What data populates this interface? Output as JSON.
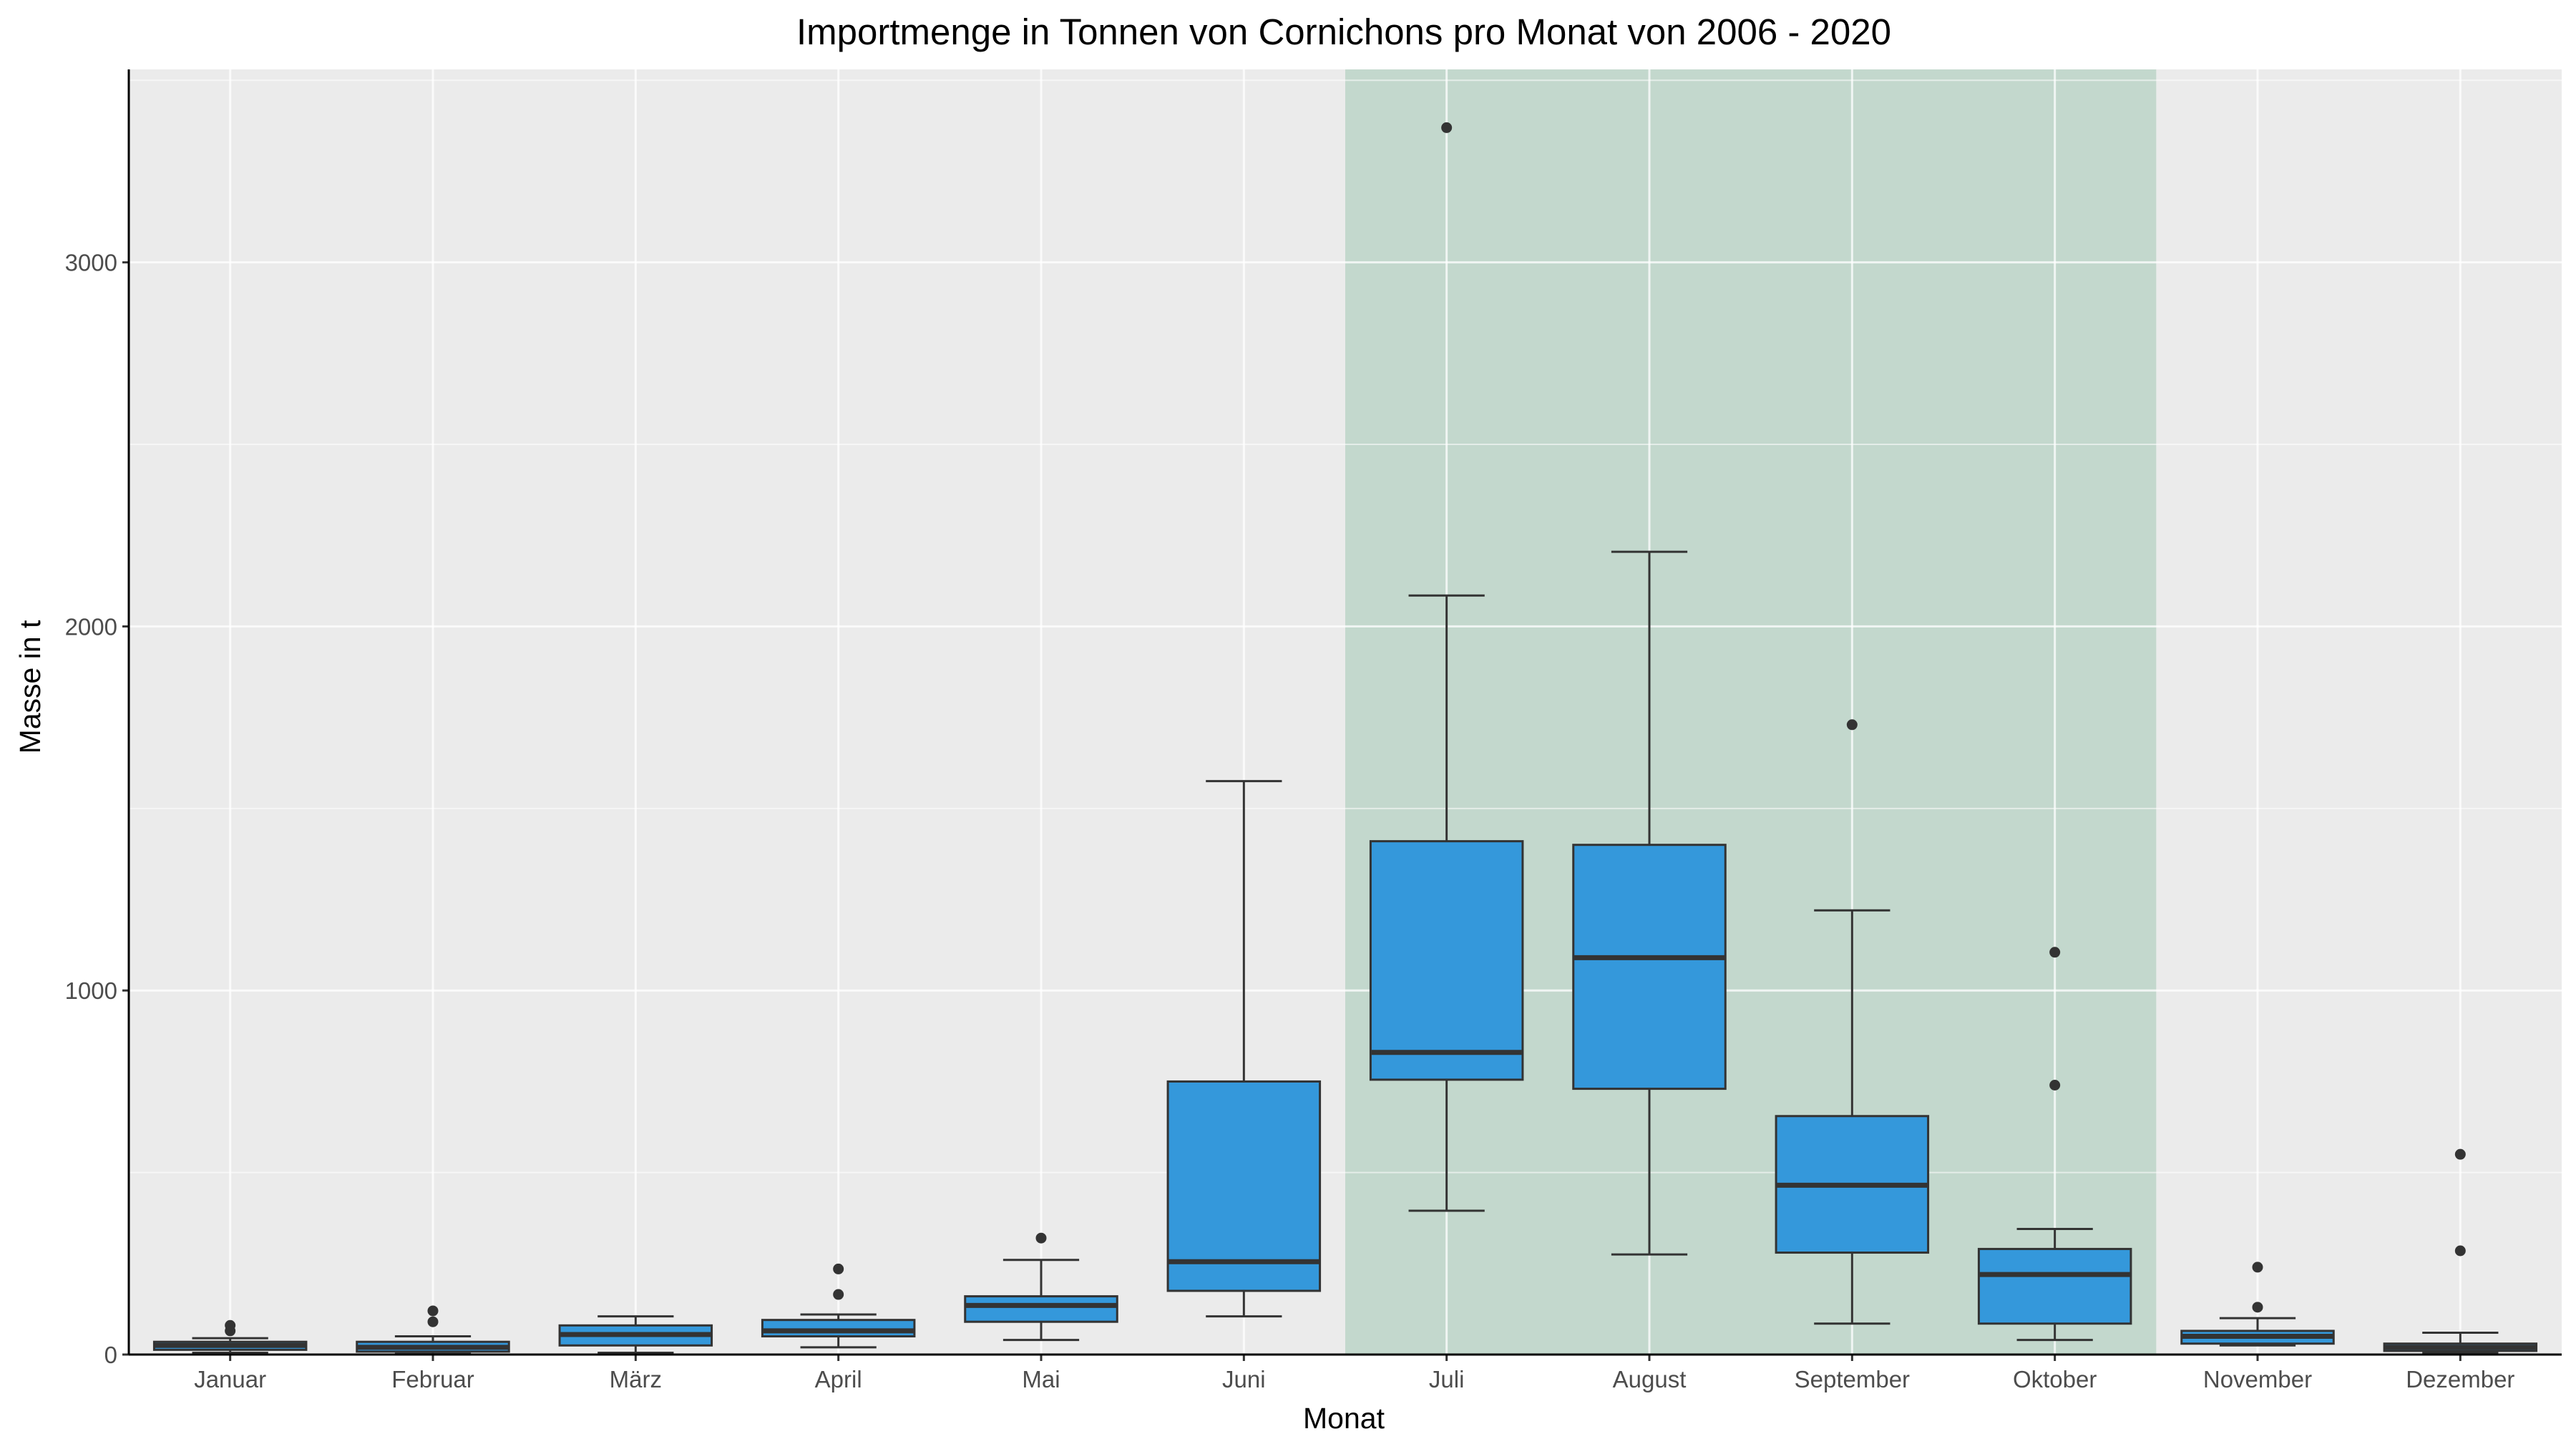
{
  "chart_data": {
    "type": "boxplot",
    "title": "Importmenge in Tonnen von Cornichons pro Monat von 2006 - 2020",
    "xlabel": "Monat",
    "ylabel": "Masse in t",
    "ylim": [
      0,
      3530
    ],
    "yticks": [
      0,
      1000,
      2000,
      3000
    ],
    "ytick_labels": [
      "0",
      "1000",
      "2000",
      "3000"
    ],
    "grid": true,
    "legend": "none",
    "colors": {
      "panel": "#EBEBEB",
      "grid": "#FFFFFF",
      "box_fill": "#3498DB",
      "box_line": "#333333",
      "highlight": "#C3D8CD"
    },
    "highlight_range": [
      "Juli",
      "Oktober"
    ],
    "categories": [
      "Januar",
      "Februar",
      "März",
      "April",
      "Mai",
      "Juni",
      "Juli",
      "August",
      "September",
      "Oktober",
      "November",
      "Dezember"
    ],
    "boxes": [
      {
        "min": 5,
        "q1": 13,
        "median": 25,
        "q3": 35,
        "max": 45,
        "outliers": [
          65,
          80
        ]
      },
      {
        "min": 2,
        "q1": 8,
        "median": 20,
        "q3": 35,
        "max": 50,
        "outliers": [
          90,
          120
        ]
      },
      {
        "min": 5,
        "q1": 25,
        "median": 55,
        "q3": 80,
        "max": 105,
        "outliers": []
      },
      {
        "min": 20,
        "q1": 50,
        "median": 65,
        "q3": 95,
        "max": 110,
        "outliers": [
          165,
          235
        ]
      },
      {
        "min": 40,
        "q1": 90,
        "median": 135,
        "q3": 160,
        "max": 260,
        "outliers": [
          320
        ]
      },
      {
        "min": 105,
        "q1": 175,
        "median": 255,
        "q3": 750,
        "max": 1575,
        "outliers": []
      },
      {
        "min": 395,
        "q1": 755,
        "median": 830,
        "q3": 1410,
        "max": 2085,
        "outliers": [
          3370
        ]
      },
      {
        "min": 275,
        "q1": 730,
        "median": 1090,
        "q3": 1400,
        "max": 2205,
        "outliers": []
      },
      {
        "min": 85,
        "q1": 280,
        "median": 465,
        "q3": 655,
        "max": 1220,
        "outliers": [
          1730
        ]
      },
      {
        "min": 40,
        "q1": 85,
        "median": 220,
        "q3": 290,
        "max": 345,
        "outliers": [
          740,
          1105
        ]
      },
      {
        "min": 25,
        "q1": 30,
        "median": 50,
        "q3": 65,
        "max": 100,
        "outliers": [
          130,
          240
        ]
      },
      {
        "min": 5,
        "q1": 10,
        "median": 20,
        "q3": 30,
        "max": 60,
        "outliers": [
          285,
          550
        ]
      }
    ]
  }
}
